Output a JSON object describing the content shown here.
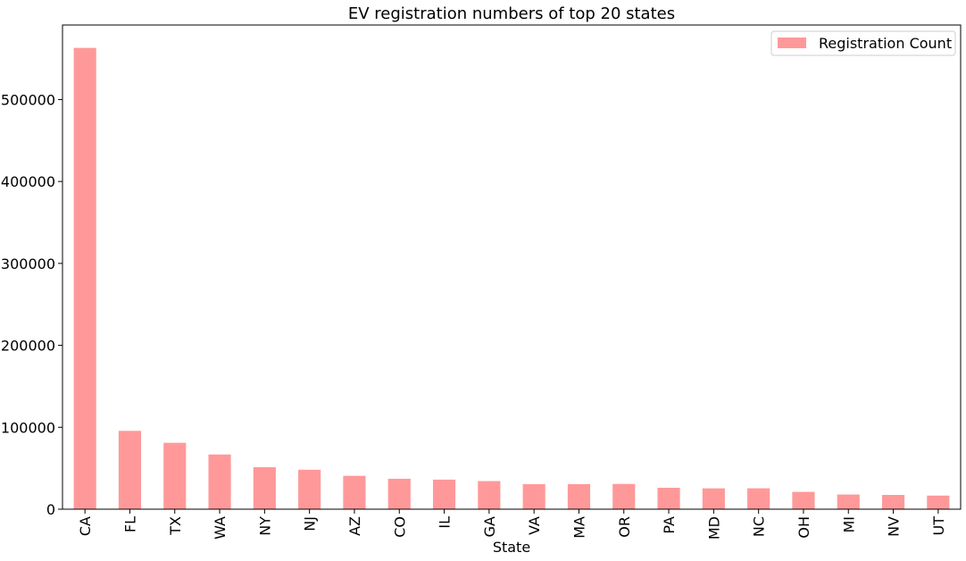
{
  "chart_data": {
    "type": "bar",
    "title": "EV registration numbers of top 20 states",
    "xlabel": "State",
    "ylabel": "",
    "categories": [
      "CA",
      "FL",
      "TX",
      "WA",
      "NY",
      "NJ",
      "AZ",
      "CO",
      "IL",
      "GA",
      "VA",
      "MA",
      "OR",
      "PA",
      "MD",
      "NC",
      "OH",
      "MI",
      "NV",
      "UT"
    ],
    "series": [
      {
        "name": "Registration Count",
        "values": [
          563070,
          95640,
          81040,
          66800,
          51240,
          48160,
          40740,
          37160,
          36100,
          34300,
          30530,
          30650,
          30810,
          26120,
          25440,
          25500,
          21150,
          17930,
          17430,
          16590
        ],
        "color": "#ff9999"
      }
    ],
    "ylim": [
      0,
      591000
    ],
    "yticks": [
      0,
      100000,
      200000,
      300000,
      400000,
      500000
    ],
    "ytick_labels": [
      "0",
      "100000",
      "200000",
      "300000",
      "400000",
      "500000"
    ],
    "legend_position": "top-right",
    "grid": false
  }
}
